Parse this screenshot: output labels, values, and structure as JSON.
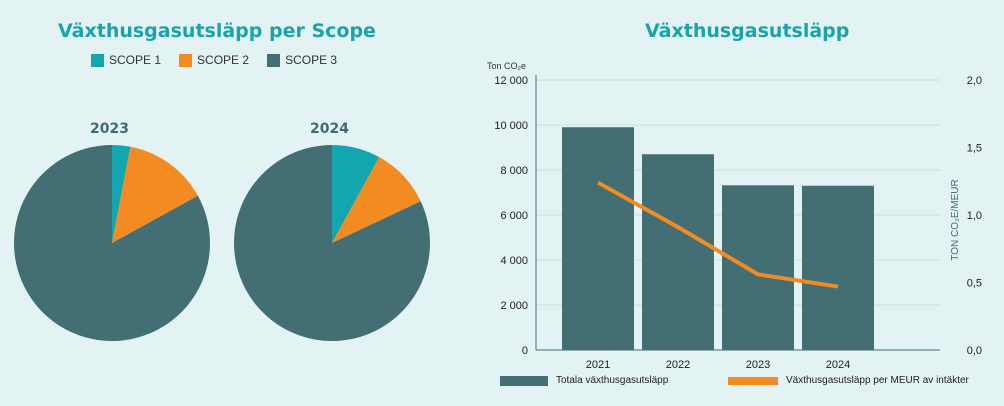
{
  "left": {
    "title": "Växthusgasutsläpp per Scope",
    "legend": [
      {
        "label": "SCOPE 1",
        "color": "#12a6b0"
      },
      {
        "label": "SCOPE 2",
        "color": "#f28c22"
      },
      {
        "label": "SCOPE 3",
        "color": "#426e74"
      }
    ]
  },
  "right": {
    "title": "Växthusgasutsläpp",
    "y_unit": "Ton CO₂e",
    "y2_label": "TON CO₂E/MEUR",
    "legend_bar": "Totala växthusgasutsläpp",
    "legend_line": "Växthusgasutsläpp per MEUR av intäkter"
  },
  "chart_data": [
    {
      "type": "pie",
      "title": "2023",
      "labels": [
        "SCOPE 1",
        "SCOPE 2",
        "SCOPE 3"
      ],
      "values": [
        3,
        14,
        83
      ],
      "colors": [
        "#12a6b0",
        "#f28c22",
        "#426e74"
      ]
    },
    {
      "type": "pie",
      "title": "2024",
      "labels": [
        "SCOPE 1",
        "SCOPE 2",
        "SCOPE 3"
      ],
      "values": [
        8,
        10,
        82
      ],
      "colors": [
        "#12a6b0",
        "#f28c22",
        "#426e74"
      ]
    },
    {
      "type": "bar",
      "title": "Växthusgasutsläpp",
      "categories": [
        "2021",
        "2022",
        "2023",
        "2024"
      ],
      "series": [
        {
          "name": "Totala växthusgasutsläpp",
          "type": "bar",
          "axis": "left",
          "values": [
            9900,
            8700,
            7320,
            7300
          ],
          "color": "#426e74"
        },
        {
          "name": "Växthusgasutsläpp per MEUR av intäkter",
          "type": "line",
          "axis": "right",
          "values": [
            1.24,
            0.91,
            0.56,
            0.47
          ],
          "color": "#f28c22"
        }
      ],
      "ylim": [
        0,
        12000
      ],
      "yticks": [
        "0",
        "2 000",
        "4 000",
        "6 000",
        "8 000",
        "10 000",
        "12 000"
      ],
      "ytick_values": [
        0,
        2000,
        4000,
        6000,
        8000,
        10000,
        12000
      ],
      "y2lim": [
        0,
        2.0
      ],
      "y2ticks": [
        "0,0",
        "0,5",
        "1,0",
        "1,5",
        "2,0"
      ],
      "y2tick_values": [
        0,
        0.5,
        1.0,
        1.5,
        2.0
      ],
      "ylabel": "Ton CO₂e",
      "y2label": "TON CO₂E/MEUR"
    }
  ]
}
